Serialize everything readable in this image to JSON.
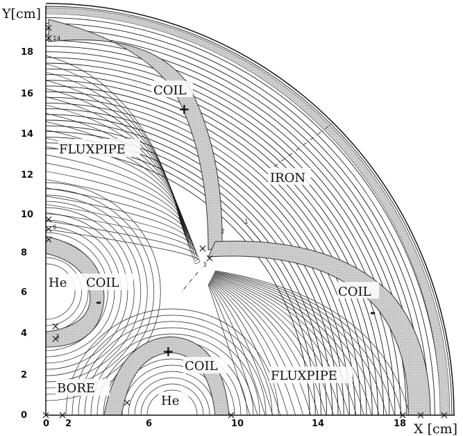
{
  "axes": {
    "x_label": "X [cm]",
    "y_label": "Y[cm]",
    "x_ticks": [
      "0",
      "2",
      "6",
      "10",
      "14",
      "18"
    ],
    "y_ticks": [
      "0",
      "2",
      "4",
      "6",
      "8",
      "10",
      "12",
      "14",
      "16",
      "18"
    ]
  },
  "regions": {
    "coil_top": "COIL",
    "coil_left": "COIL",
    "coil_bottom": "COIL",
    "coil_right": "COIL",
    "iron": "IRON",
    "fluxpipe_upper": "FLUXPIPE",
    "fluxpipe_lower": "FLUXPIPE",
    "he_left": "He",
    "he_bottom": "He",
    "bore": "BORE"
  },
  "signs": {
    "top": "+",
    "left": "-",
    "bottom": "+",
    "right": "-"
  },
  "small_labels": {
    "top_left": "14",
    "left_mid": "6",
    "left_low": "3",
    "center_1": "1",
    "center_2": "2",
    "center_3": "3"
  },
  "colors": {
    "line": "#1a1a1a",
    "coil_fill": "#cfcfcf",
    "background": "#ffffff"
  }
}
